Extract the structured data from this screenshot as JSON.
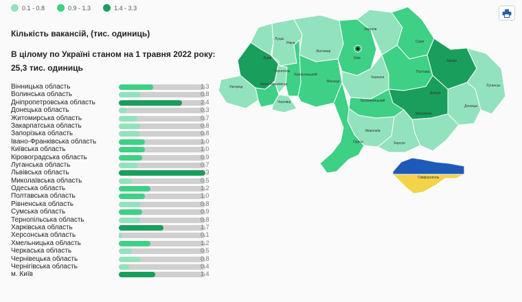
{
  "legend": [
    {
      "label": "0.1 - 0.8",
      "color": "#91e2bd"
    },
    {
      "label": "0.9 - 1.3",
      "color": "#3ed085"
    },
    {
      "label": "1.4 - 3.3",
      "color": "#1a9e5c"
    }
  ],
  "title": "Кількість вакансій, (тис. одиниць)",
  "summary_line1": "В цілому по Україні станом на 1 травня 2022 року:",
  "summary_line2": "25,3 тис. одиниць",
  "max_value": 3.3,
  "colors": {
    "track": "#cfcfcf",
    "crimea_top": "#1e5bb8",
    "crimea_bottom": "#f3d34a"
  },
  "regions": [
    {
      "name": "Вінницька область",
      "value": 1.3,
      "value_label": "1.3"
    },
    {
      "name": "Волинська область",
      "value": 0.8,
      "value_label": "0.8"
    },
    {
      "name": "Дніпропетровська область",
      "value": 2.4,
      "value_label": "2.4"
    },
    {
      "name": "Донецька область",
      "value": 0.3,
      "value_label": "0.3"
    },
    {
      "name": "Житомирська область",
      "value": 0.7,
      "value_label": "0.7"
    },
    {
      "name": "Закарпатська область",
      "value": 0.8,
      "value_label": "0.8"
    },
    {
      "name": "Запорізька область",
      "value": 0.8,
      "value_label": "0.8"
    },
    {
      "name": "Івано-Франківська область",
      "value": 1.0,
      "value_label": "1.0"
    },
    {
      "name": "Київська область",
      "value": 1.0,
      "value_label": "1.0"
    },
    {
      "name": "Кіровоградська область",
      "value": 0.9,
      "value_label": "0.9"
    },
    {
      "name": "Луганська область",
      "value": 0.7,
      "value_label": "0.7"
    },
    {
      "name": "Львівська область",
      "value": 3.3,
      "value_label": "3.3"
    },
    {
      "name": "Миколаївська область",
      "value": 0.5,
      "value_label": "0.5"
    },
    {
      "name": "Одеська область",
      "value": 1.2,
      "value_label": "1.2"
    },
    {
      "name": "Полтавська область",
      "value": 1.0,
      "value_label": "1.0"
    },
    {
      "name": "Рівненська область",
      "value": 0.8,
      "value_label": "0.8"
    },
    {
      "name": "Сумська область",
      "value": 0.9,
      "value_label": "0.9"
    },
    {
      "name": "Тернопільська область",
      "value": 0.8,
      "value_label": "0.8"
    },
    {
      "name": "Харківська область",
      "value": 1.7,
      "value_label": "1.7"
    },
    {
      "name": "Херсонська область",
      "value": 0.1,
      "value_label": "0.1"
    },
    {
      "name": "Хмельницька область",
      "value": 1.2,
      "value_label": "1.2"
    },
    {
      "name": "Черкаська область",
      "value": 0.5,
      "value_label": "0.5"
    },
    {
      "name": "Чернівецька область",
      "value": 0.8,
      "value_label": "0.8"
    },
    {
      "name": "Чернігівська область",
      "value": 0.4,
      "value_label": "0.4"
    },
    {
      "name": "м. Київ",
      "value": 1.4,
      "value_label": "1.4"
    }
  ],
  "map_labels": {
    "volyn": "Луцьк",
    "rivne": "Рівне",
    "zhytomyr": "Житомир",
    "chernihiv": "Чернігів",
    "sumy": "Суми",
    "lviv": "Львів",
    "ternopil": "Тернопіль",
    "khmelnytskyi": "Хмельницький",
    "kyiv_city": "Київ",
    "poltava": "Полтава",
    "kharkiv": "Харків",
    "zakarpattia": "Ужгород",
    "ivano": "Івано-Франківськ",
    "vinnytsia": "Вінниця",
    "cherkasy": "Черкаси",
    "luhansk": "Луганськ",
    "chernivtsi": "Чернівці",
    "kirovohrad": "Кропивницький",
    "dnipro": "Дніпро",
    "donetsk": "Донецьк",
    "zaporizhzhia": "Запоріжжя",
    "mykolaiv": "Миколаїв",
    "odesa": "Одеса",
    "kherson": "Херсон",
    "crimea": "Сімферополь"
  }
}
